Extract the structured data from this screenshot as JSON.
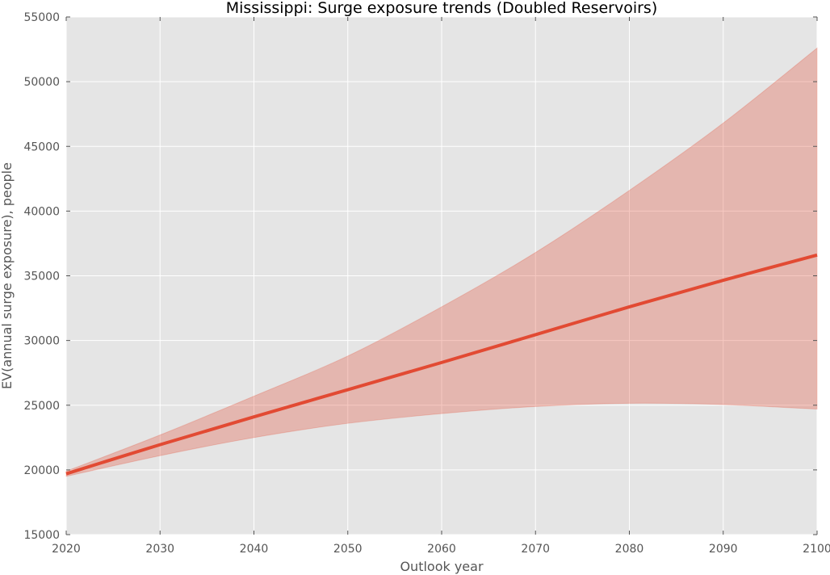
{
  "chart_data": {
    "type": "area",
    "title": "Mississippi: Surge exposure trends (Doubled Reservoirs)",
    "xlabel": "Outlook year",
    "ylabel": "EV(annual surge exposure), people",
    "xlim": [
      2020,
      2100
    ],
    "ylim": [
      15000,
      55000
    ],
    "x_ticks": [
      "2020",
      "2030",
      "2040",
      "2050",
      "2060",
      "2070",
      "2080",
      "2090",
      "2100"
    ],
    "y_ticks": [
      "15000",
      "20000",
      "25000",
      "30000",
      "35000",
      "40000",
      "45000",
      "50000",
      "55000"
    ],
    "grid": true,
    "x": [
      2020,
      2030,
      2040,
      2050,
      2060,
      2070,
      2080,
      2090,
      2100
    ],
    "series": [
      {
        "values": [
          19700,
          21950,
          24100,
          26200,
          28300,
          30450,
          32600,
          34650,
          36600
        ],
        "color": "#e24a33"
      }
    ],
    "band": {
      "lower": [
        19500,
        21100,
        22500,
        23600,
        24350,
        24900,
        25150,
        25050,
        24700
      ],
      "upper": [
        19900,
        22700,
        25700,
        28800,
        32600,
        36800,
        41600,
        46800,
        52600
      ],
      "color": "#e24a33"
    },
    "colors": {
      "plot_background": "#e5e5e5",
      "grid": "#ffffff",
      "band_fill": "#e8a59b"
    }
  }
}
